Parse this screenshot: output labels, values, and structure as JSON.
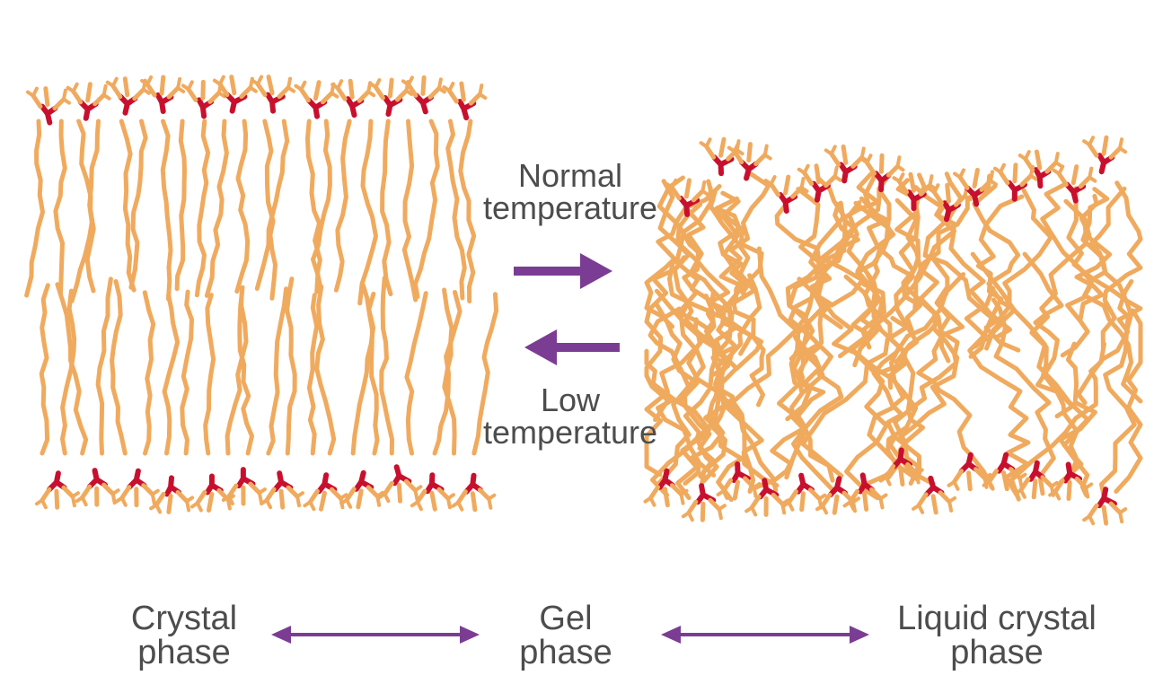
{
  "labels": {
    "normal_temperature": [
      "Normal",
      "temperature"
    ],
    "low_temperature": [
      "Low",
      "temperature"
    ],
    "crystal_phase": [
      "Crystal",
      "phase"
    ],
    "gel_phase": [
      "Gel",
      "phase"
    ],
    "liquid_crystal_phase": [
      "Liquid crystal",
      "phase"
    ]
  },
  "colors": {
    "tail": "#f0aa5e",
    "tail_dark": "#e49a4b",
    "head": "#c8102e",
    "arrow": "#7b3d94",
    "text": "#4d4d4d"
  }
}
